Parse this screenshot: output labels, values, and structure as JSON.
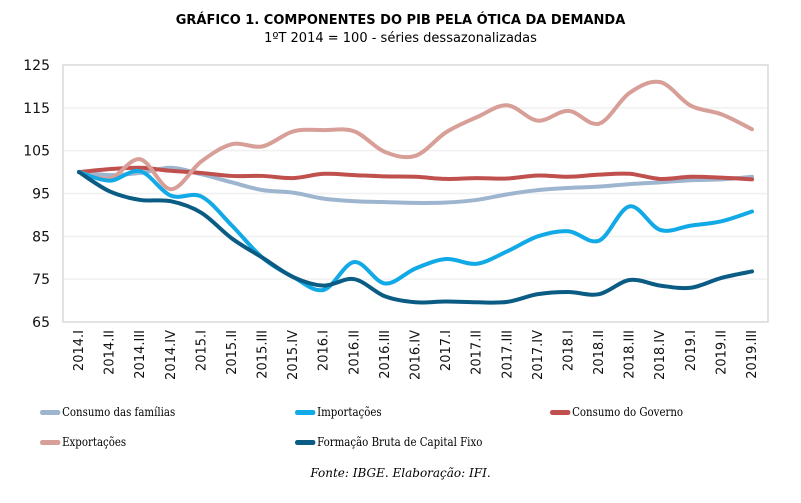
{
  "chart_data": {
    "type": "line",
    "title": "GRÁFICO 1. COMPONENTES DO PIB PELA ÓTICA DA DEMANDA",
    "subtitle": "1ºT 2014 = 100 - séries dessazonalizadas",
    "xlabel": "",
    "ylabel": "",
    "ylim": [
      65,
      125
    ],
    "yticks": [
      65,
      75,
      85,
      95,
      105,
      115,
      125
    ],
    "grid": true,
    "legend_position": "bottom",
    "categories": [
      "2014.I",
      "2014.II",
      "2014.III",
      "2014.IV",
      "2015.I",
      "2015.II",
      "2015.III",
      "2015.IV",
      "2016.I",
      "2016.II",
      "2016.III",
      "2016.IV",
      "2017.I",
      "2017.II",
      "2017.III",
      "2017.IV",
      "2018.I",
      "2018.II",
      "2018.III",
      "2018.IV",
      "2019.I",
      "2019.II",
      "2019.III"
    ],
    "series": [
      {
        "name": "Consumo das famílias",
        "color": "#9db5cf",
        "values": [
          100,
          99.3,
          99.8,
          101,
          99.5,
          97.6,
          95.8,
          95.2,
          93.8,
          93.2,
          93,
          92.8,
          92.9,
          93.5,
          94.8,
          95.8,
          96.3,
          96.6,
          97.2,
          97.6,
          98.1,
          98.3,
          98.9
        ]
      },
      {
        "name": "Importações",
        "color": "#12aae6",
        "values": [
          100,
          98,
          100.2,
          94.5,
          94.3,
          87.5,
          80,
          75.5,
          72.5,
          79,
          74,
          77.5,
          79.7,
          78.6,
          81.5,
          85,
          86.2,
          84,
          92,
          86.5,
          87.5,
          88.5,
          90.8
        ]
      },
      {
        "name": "Consumo do Governo",
        "color": "#c0504d",
        "values": [
          100,
          100.7,
          101,
          100.3,
          99.8,
          99.1,
          99.1,
          98.6,
          99.6,
          99.3,
          99,
          98.9,
          98.4,
          98.6,
          98.5,
          99.2,
          98.9,
          99.4,
          99.6,
          98.4,
          98.9,
          98.7,
          98.3
        ]
      },
      {
        "name": "Exportações",
        "color": "#d79f97",
        "values": [
          100,
          98.5,
          103,
          96,
          102.5,
          106.5,
          106,
          109.5,
          109.8,
          109.5,
          104.7,
          103.8,
          109.3,
          112.8,
          115.6,
          112,
          114.3,
          111.3,
          118.5,
          121,
          115.5,
          113.5,
          110
        ]
      },
      {
        "name": "Formação Bruta de Capital Fixo",
        "color": "#0b5c84",
        "values": [
          100,
          95.5,
          93.5,
          93.2,
          90.5,
          84.5,
          80,
          75.5,
          73.5,
          75,
          71,
          69.6,
          69.8,
          69.6,
          69.7,
          71.5,
          72,
          71.5,
          74.8,
          73.5,
          73,
          75.3,
          76.8
        ]
      }
    ],
    "source": "Fonte: IBGE. Elaboração: IFI."
  }
}
